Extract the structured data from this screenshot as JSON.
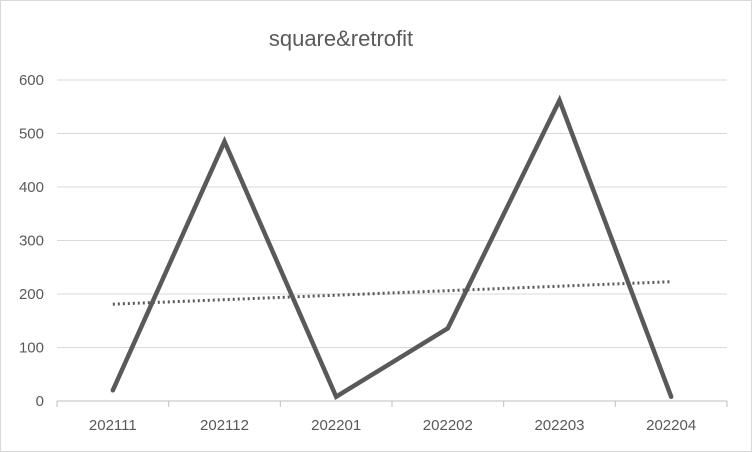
{
  "chart_data": {
    "type": "line",
    "title": "square&retrofit",
    "categories": [
      "202111",
      "202112",
      "202201",
      "202202",
      "202203",
      "202204"
    ],
    "series": [
      {
        "values": [
          20,
          485,
          8,
          136,
          562,
          8
        ],
        "color": "#595959",
        "style": "solid"
      }
    ],
    "trendline": {
      "kind": "linear",
      "start": 181,
      "end": 223,
      "color": "#595959",
      "style": "dotted"
    },
    "yticks": [
      0,
      100,
      200,
      300,
      400,
      500,
      600
    ],
    "ylim": [
      0,
      600
    ],
    "grid": true,
    "legend": "none",
    "xlabel": "",
    "ylabel": ""
  }
}
